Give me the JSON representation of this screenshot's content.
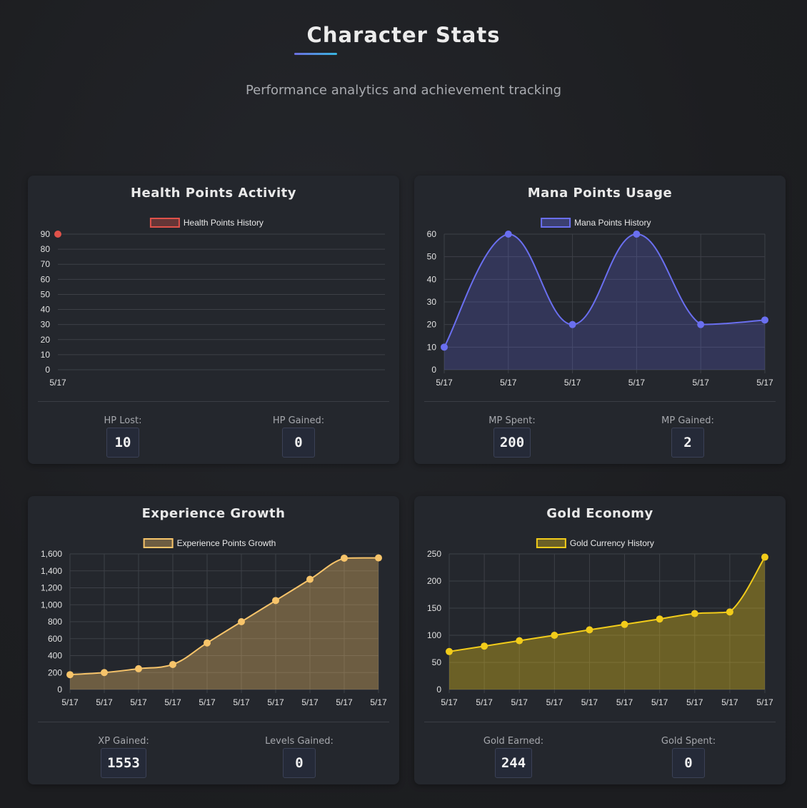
{
  "page": {
    "title": "Character Stats",
    "subtitle": "Performance analytics and achievement tracking"
  },
  "cards": [
    {
      "title": "Health Points Activity",
      "stats": [
        {
          "label": "HP Lost:",
          "value": "10"
        },
        {
          "label": "HP Gained:",
          "value": "0"
        }
      ]
    },
    {
      "title": "Mana Points Usage",
      "stats": [
        {
          "label": "MP Spent:",
          "value": "200"
        },
        {
          "label": "MP Gained:",
          "value": "2"
        }
      ]
    },
    {
      "title": "Experience Growth",
      "stats": [
        {
          "label": "XP Gained:",
          "value": "1553"
        },
        {
          "label": "Levels Gained:",
          "value": "0"
        }
      ]
    },
    {
      "title": "Gold Economy",
      "stats": [
        {
          "label": "Gold Earned:",
          "value": "244"
        },
        {
          "label": "Gold Spent:",
          "value": "0"
        }
      ]
    }
  ],
  "chart_data": [
    {
      "type": "line",
      "title": "Health Points Activity",
      "legend_position": "top",
      "x": [
        "5/17"
      ],
      "series": [
        {
          "name": "Health Points History",
          "values": [
            90
          ],
          "color": "#e0524a"
        }
      ],
      "ylim": [
        0,
        90
      ],
      "yticks": [
        0,
        10,
        20,
        30,
        40,
        50,
        60,
        70,
        80,
        90
      ],
      "grid": true
    },
    {
      "type": "area",
      "title": "Mana Points Usage",
      "legend_position": "top",
      "x": [
        "5/17",
        "5/17",
        "5/17",
        "5/17",
        "5/17",
        "5/17"
      ],
      "series": [
        {
          "name": "Mana Points History",
          "values": [
            10,
            60,
            20,
            60,
            20,
            22
          ],
          "color": "#6a6ff0"
        }
      ],
      "ylim": [
        0,
        60
      ],
      "yticks": [
        0,
        10,
        20,
        30,
        40,
        50,
        60
      ],
      "grid": true
    },
    {
      "type": "area",
      "title": "Experience Growth",
      "legend_position": "top",
      "x": [
        "5/17",
        "5/17",
        "5/17",
        "5/17",
        "5/17",
        "5/17",
        "5/17",
        "5/17",
        "5/17",
        "5/17"
      ],
      "series": [
        {
          "name": "Experience Points Growth",
          "values": [
            175,
            200,
            245,
            295,
            550,
            800,
            1050,
            1300,
            1550,
            1553
          ],
          "color": "#f7c46a"
        }
      ],
      "ylim": [
        0,
        1600
      ],
      "yticks": [
        0,
        200,
        400,
        600,
        800,
        1000,
        1200,
        1400,
        1600
      ],
      "ytick_labels": [
        "0",
        "200",
        "400",
        "600",
        "800",
        "1,000",
        "1,200",
        "1,400",
        "1,600"
      ],
      "grid": true
    },
    {
      "type": "area",
      "title": "Gold Economy",
      "legend_position": "top",
      "x": [
        "5/17",
        "5/17",
        "5/17",
        "5/17",
        "5/17",
        "5/17",
        "5/17",
        "5/17",
        "5/17",
        "5/17"
      ],
      "series": [
        {
          "name": "Gold Currency History",
          "values": [
            70,
            80,
            90,
            100,
            110,
            120,
            130,
            140,
            143,
            244
          ],
          "color": "#f2cc1a"
        }
      ],
      "ylim": [
        0,
        250
      ],
      "yticks": [
        0,
        50,
        100,
        150,
        200,
        250
      ],
      "grid": true
    }
  ]
}
